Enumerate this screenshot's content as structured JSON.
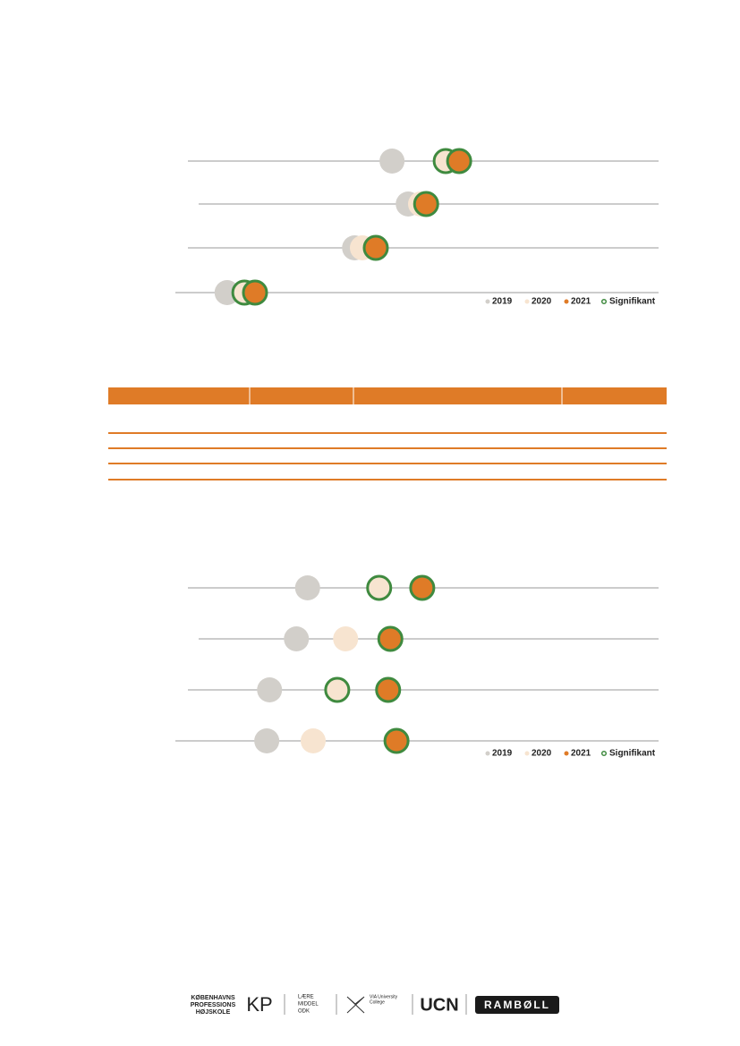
{
  "chart_data": [
    {
      "type": "dot",
      "xlim": [
        0,
        100
      ],
      "categories": [
        null,
        null,
        null,
        null
      ],
      "significant_color": "#3f8a3f",
      "significant_label": "Signifikant",
      "series": [
        {
          "name": "2019",
          "color": "#d2cfca",
          "values": [
            50.9,
            53.8,
            44.2,
            21.4
          ],
          "significant": [
            false,
            false,
            false,
            false
          ]
        },
        {
          "name": "2020",
          "color": "#f7e4d0",
          "values": [
            60.5,
            56,
            45.6,
            24.5
          ],
          "significant": [
            true,
            false,
            false,
            true
          ]
        },
        {
          "name": "2021",
          "color": "#df7b27",
          "values": [
            62.9,
            57,
            48,
            26.4
          ],
          "significant": [
            true,
            true,
            true,
            true
          ]
        }
      ]
    },
    {
      "type": "dot",
      "xlim": [
        0,
        100
      ],
      "categories": [
        null,
        null,
        null,
        null
      ],
      "significant_color": "#3f8a3f",
      "significant_label": "Signifikant",
      "series": [
        {
          "name": "2019",
          "color": "#d2cfca",
          "values": [
            35.8,
            33.8,
            29,
            28.5
          ],
          "significant": [
            false,
            false,
            false,
            false
          ]
        },
        {
          "name": "2020",
          "color": "#f7e4d0",
          "values": [
            48.6,
            42.6,
            41.1,
            36.8
          ],
          "significant": [
            true,
            false,
            true,
            false
          ]
        },
        {
          "name": "2021",
          "color": "#df7b27",
          "values": [
            56.3,
            50.6,
            50.2,
            51.7
          ],
          "significant": [
            true,
            true,
            true,
            true
          ]
        }
      ]
    }
  ],
  "footer": {
    "logos": [
      "KØBENHAVNS",
      "PROFESSIONS",
      "HØJSKOLE",
      "KP",
      "LÆRE",
      "MIDDEL",
      "ODK",
      "VIA University",
      "College",
      "UCN",
      "RAMBØLL"
    ]
  }
}
